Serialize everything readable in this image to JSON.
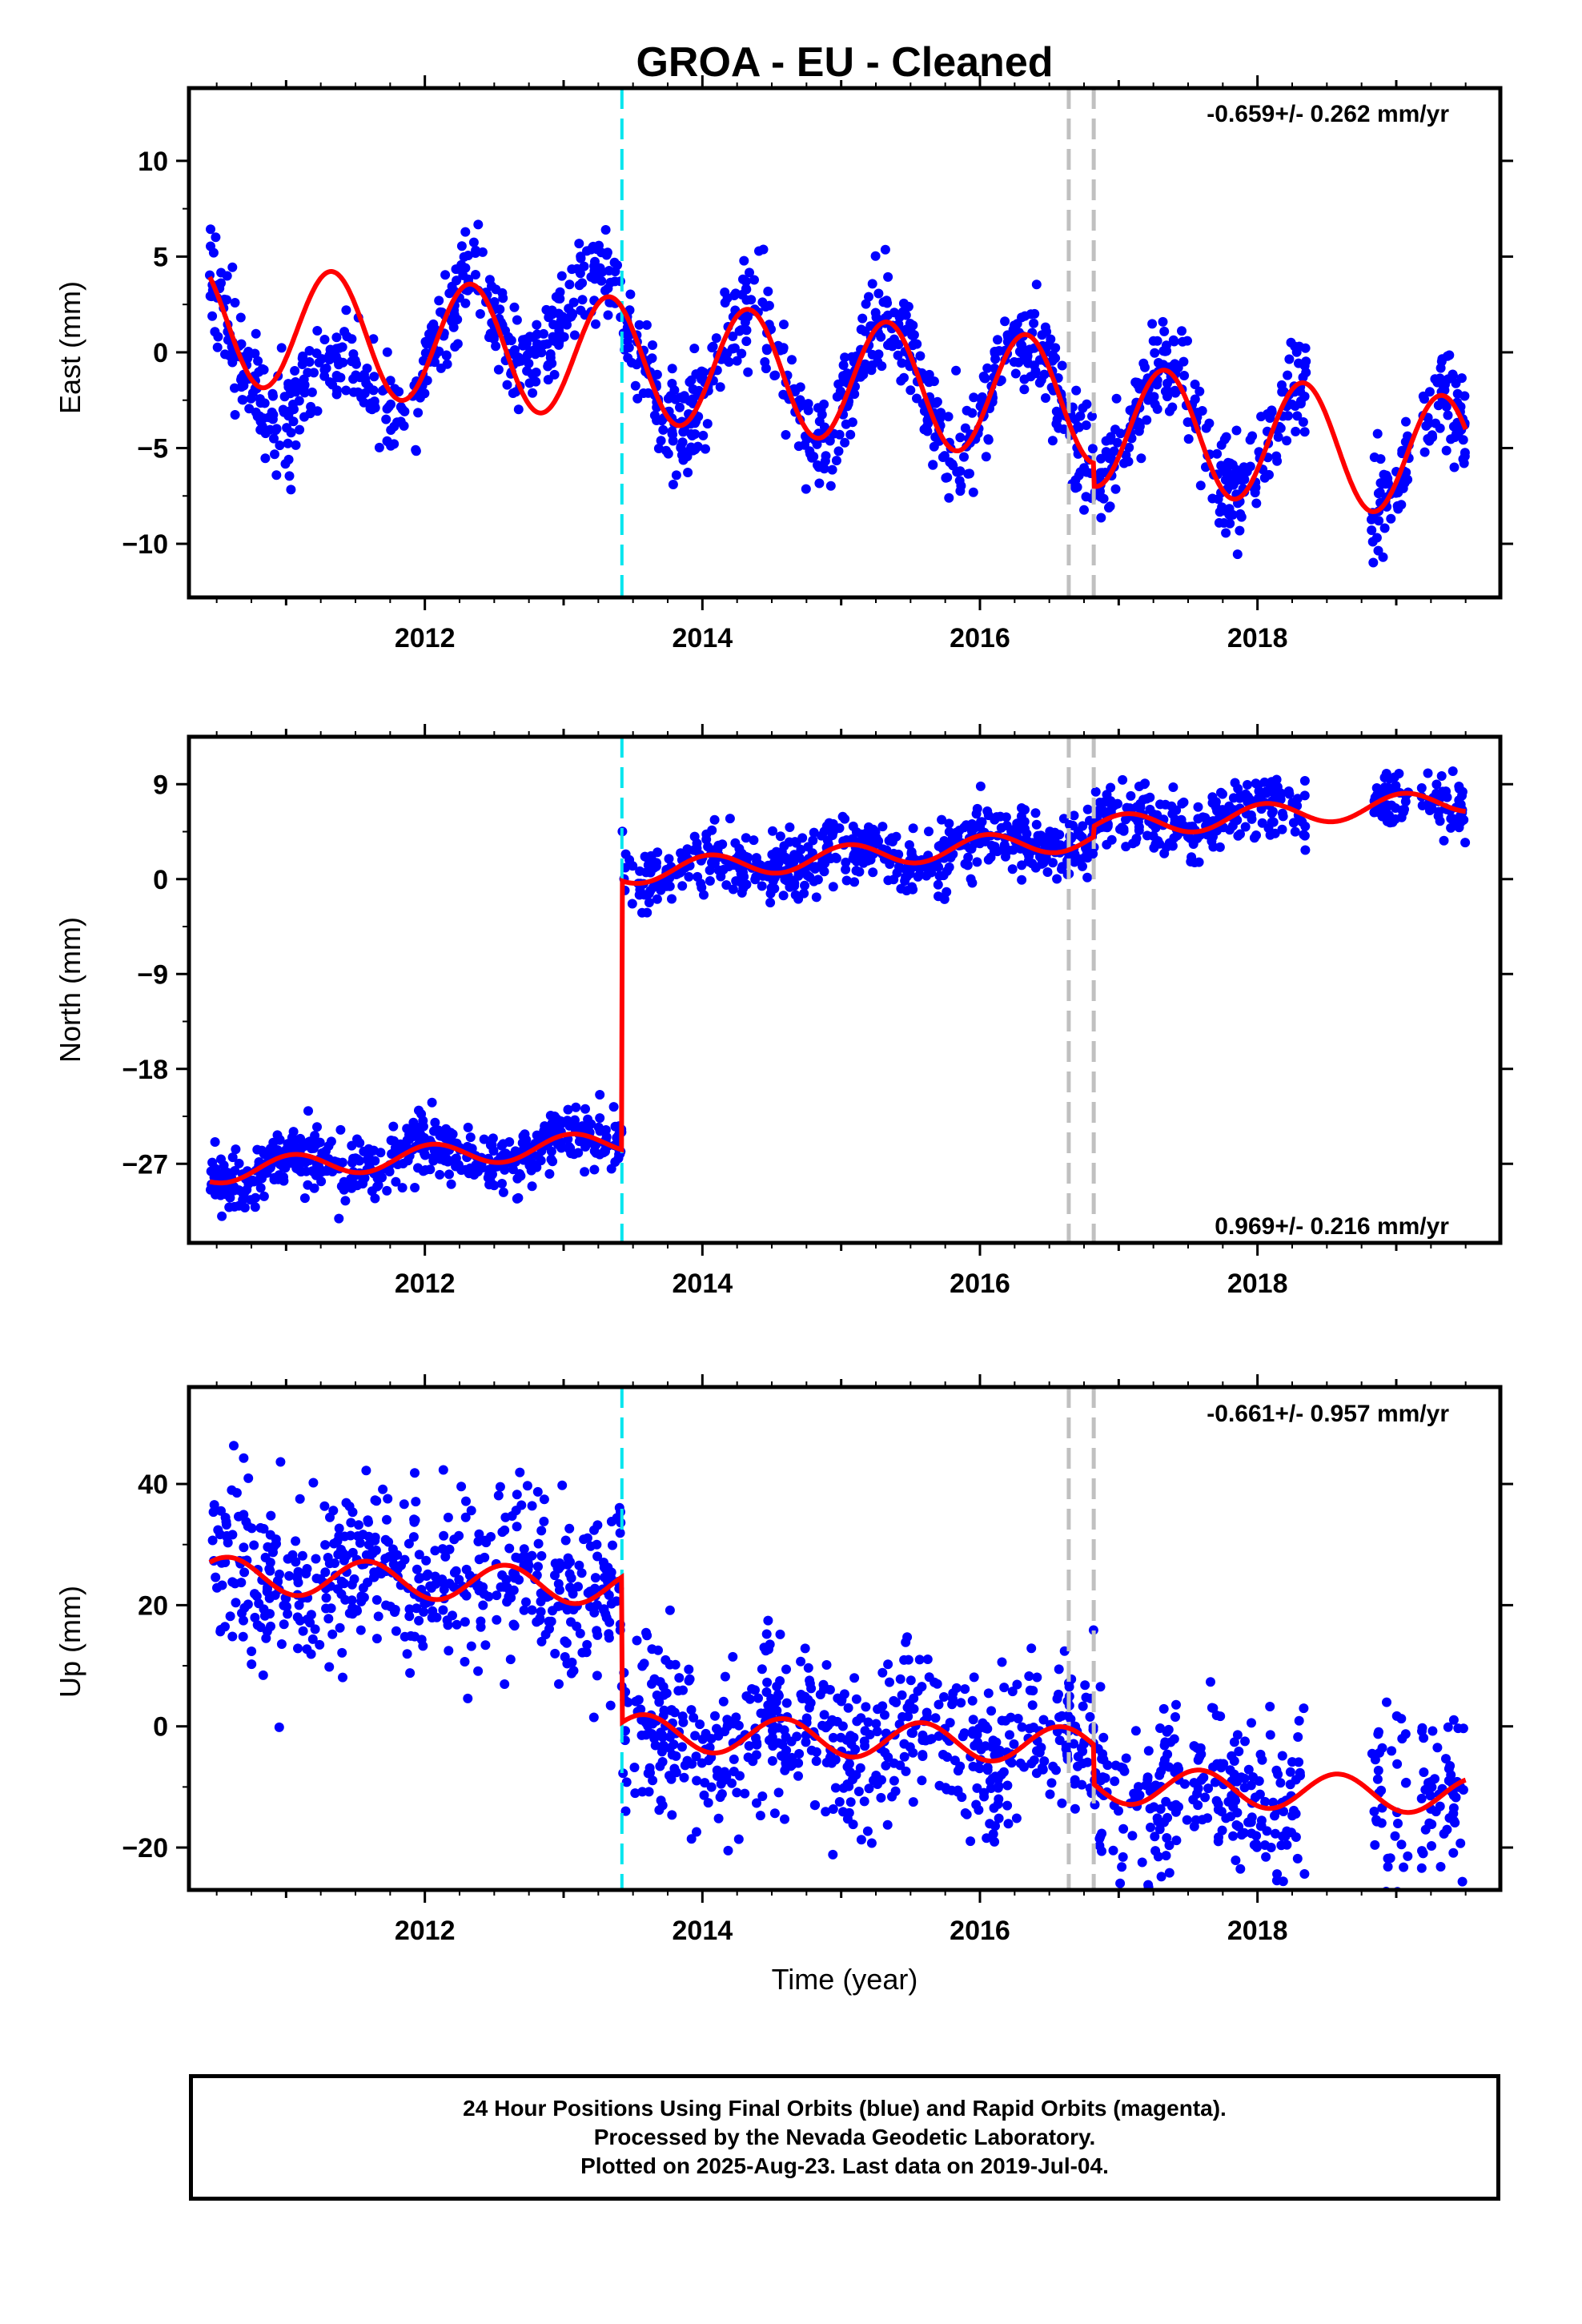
{
  "chart_data": {
    "type": "scatter",
    "title": "GROA  - EU - Cleaned",
    "xlabel": "Time (year)",
    "x_ticks": [
      2012,
      2014,
      2016,
      2018
    ],
    "xlim": [
      2010.3,
      2019.75
    ],
    "colors": {
      "observations": "#0000ff",
      "model": "#ff0000",
      "equipment_change": "#00e5ee",
      "earthquake_offset": "#c0c0c0"
    },
    "vertical_markers": [
      {
        "kind": "equipment_change",
        "x": 2013.42,
        "color": "#00e5ee",
        "style": "dashed"
      },
      {
        "kind": "earthquake_offset",
        "x": 2016.64,
        "color": "#c0c0c0",
        "style": "dashed"
      },
      {
        "kind": "earthquake_offset",
        "x": 2016.82,
        "color": "#c0c0c0",
        "style": "dashed"
      }
    ],
    "data_span": [
      2010.45,
      2019.5
    ],
    "panels": [
      {
        "id": "east",
        "ylabel": "East (mm)",
        "rate": "-0.659+/- 0.262 mm/yr",
        "rate_position": "top-right",
        "ylim": [
          -12.8,
          13.8
        ],
        "y_ticks": [
          -10,
          -5,
          0,
          5,
          10
        ],
        "y_tick_labels": [
          "−10",
          "−5",
          "0",
          "5",
          "10"
        ],
        "model_params": {
          "mean": 1.6,
          "trend_per_year": -0.659,
          "annual_amp": 3.2,
          "annual_phase_year": 2011.33,
          "offsets": [
            {
              "x": 2013.42,
              "delta": 0.0
            },
            {
              "x": 2016.82,
              "delta": -1.2
            }
          ]
        },
        "observations": {
          "scatter_mm": 1.3,
          "seed": 11,
          "excursions": [
            {
              "x0": 2010.72,
              "x1": 2011.82,
              "shift": -4.5
            },
            {
              "x0": 2012.55,
              "x1": 2013.42,
              "shift": 3.5
            }
          ]
        }
      },
      {
        "id": "north",
        "ylabel": "North (mm)",
        "rate": "0.969+/- 0.216 mm/yr",
        "rate_position": "bottom-right",
        "ylim": [
          -34.5,
          13.5
        ],
        "y_ticks": [
          -27,
          -18,
          -9,
          0,
          9
        ],
        "y_tick_labels": [
          "−27",
          "−18",
          "−9",
          "0",
          "9"
        ],
        "model_params": {
          "mean": -27.8,
          "trend_per_year": 0.969,
          "annual_amp": 1.1,
          "annual_phase_year": 2011.05,
          "offsets": [
            {
              "x": 2013.42,
              "delta": 25.5
            },
            {
              "x": 2016.82,
              "delta": 1.0
            }
          ]
        },
        "observations": {
          "scatter_mm": 1.5,
          "seed": 23,
          "excursions": []
        }
      },
      {
        "id": "up",
        "ylabel": "Up (mm)",
        "rate": "-0.661+/- 0.957 mm/yr",
        "rate_position": "top-right",
        "ylim": [
          -27,
          56
        ],
        "y_ticks": [
          -20,
          0,
          20,
          40
        ],
        "y_tick_labels": [
          "−20",
          "0",
          "20",
          "40"
        ],
        "model_params": {
          "mean": 25.0,
          "trend_per_year": -0.661,
          "annual_amp": 3.0,
          "annual_phase_year": 2010.58,
          "offsets": [
            {
              "x": 2013.42,
              "delta": -24.0
            },
            {
              "x": 2016.82,
              "delta": -6.5
            }
          ]
        },
        "observations": {
          "scatter_mm": 7.0,
          "seed": 37,
          "excursions": []
        }
      }
    ]
  },
  "footer": {
    "line1": "24 Hour Positions Using Final Orbits (blue) and Rapid Orbits (magenta).",
    "line2": "Processed by the Nevada Geodetic Laboratory.",
    "line3": "Plotted on 2025-Aug-23. Last data on 2019-Jul-04."
  }
}
